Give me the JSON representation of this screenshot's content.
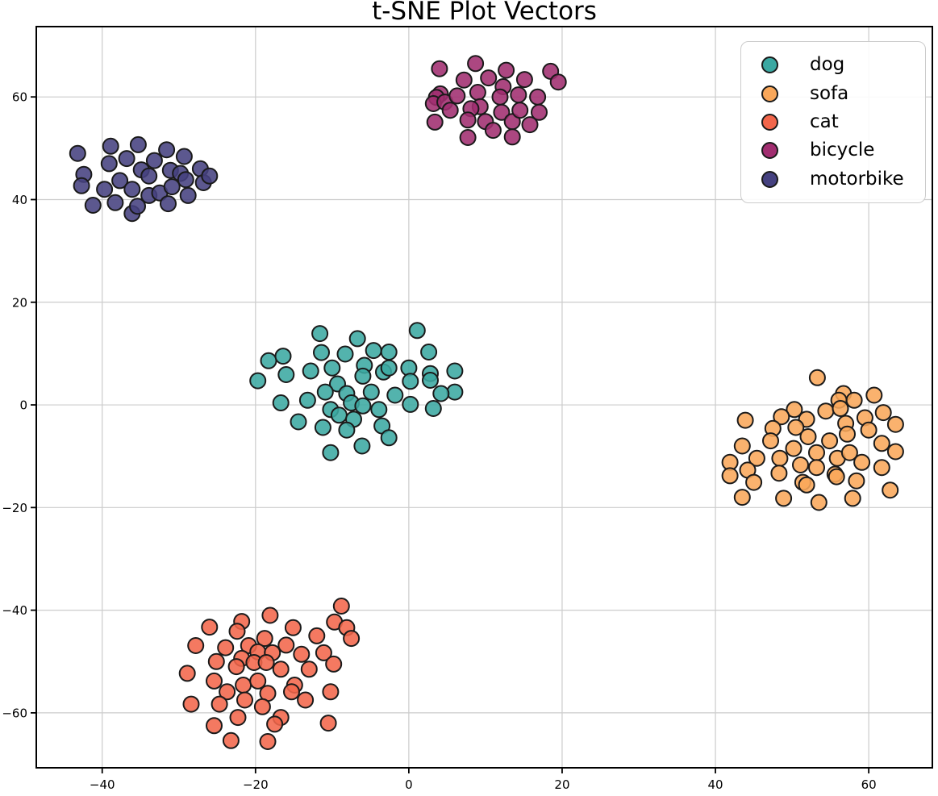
{
  "chart_data": {
    "type": "scatter",
    "title": "t-SNE Plot Vectors",
    "xlabel": "",
    "ylabel": "",
    "xlim": [
      -48.6,
      68.3
    ],
    "ylim": [
      -70.7,
      73.7
    ],
    "grid": true,
    "grid_color": "#cccccc",
    "legend_position": "upper right",
    "marker": {
      "radius_px": 9.5,
      "edge_color": "#1a1a1a",
      "edge_width": 2,
      "fill_opacity": 0.88
    },
    "x_ticks": [
      {
        "value": -40,
        "label": "−40"
      },
      {
        "value": -20,
        "label": "−20"
      },
      {
        "value": 0,
        "label": "0"
      },
      {
        "value": 20,
        "label": "20"
      },
      {
        "value": 40,
        "label": "40"
      },
      {
        "value": 60,
        "label": "60"
      }
    ],
    "y_ticks": [
      {
        "value": -60,
        "label": "−60"
      },
      {
        "value": -40,
        "label": "−40"
      },
      {
        "value": -20,
        "label": "−20"
      },
      {
        "value": 0,
        "label": "0"
      },
      {
        "value": 20,
        "label": "20"
      },
      {
        "value": 40,
        "label": "40"
      },
      {
        "value": 60,
        "label": "60"
      }
    ],
    "series": [
      {
        "name": "dog",
        "color": "#3BA8A2",
        "points": [
          [
            -11.6,
            13.9
          ],
          [
            -6.7,
            12.9
          ],
          [
            1.1,
            14.5
          ],
          [
            -18.3,
            8.6
          ],
          [
            -16.4,
            9.5
          ],
          [
            -11.4,
            10.2
          ],
          [
            -8.3,
            9.9
          ],
          [
            -4.6,
            10.6
          ],
          [
            -2.6,
            10.3
          ],
          [
            2.6,
            10.3
          ],
          [
            6.0,
            6.6
          ],
          [
            -16.0,
            5.9
          ],
          [
            -12.8,
            6.6
          ],
          [
            -10.0,
            7.2
          ],
          [
            -5.8,
            7.7
          ],
          [
            -6.0,
            5.6
          ],
          [
            -3.3,
            6.4
          ],
          [
            -2.6,
            7.2
          ],
          [
            0.0,
            7.2
          ],
          [
            0.2,
            4.6
          ],
          [
            2.8,
            6.1
          ],
          [
            2.8,
            4.8
          ],
          [
            6.0,
            2.5
          ],
          [
            -19.7,
            4.7
          ],
          [
            -9.3,
            4.1
          ],
          [
            -10.9,
            2.5
          ],
          [
            -8.1,
            2.2
          ],
          [
            -4.9,
            2.5
          ],
          [
            -1.8,
            1.9
          ],
          [
            4.2,
            2.2
          ],
          [
            -16.7,
            0.4
          ],
          [
            -13.2,
            0.9
          ],
          [
            -10.2,
            -0.9
          ],
          [
            -9.1,
            -2.0
          ],
          [
            -7.5,
            0.4
          ],
          [
            -6.0,
            -0.2
          ],
          [
            -3.9,
            -0.9
          ],
          [
            0.2,
            0.1
          ],
          [
            3.2,
            -0.7
          ],
          [
            -7.2,
            -2.8
          ],
          [
            -14.4,
            -3.3
          ],
          [
            -11.2,
            -4.4
          ],
          [
            -8.1,
            -4.9
          ],
          [
            -3.5,
            -4.1
          ],
          [
            -2.6,
            -6.4
          ],
          [
            -6.1,
            -8.0
          ],
          [
            -10.2,
            -9.3
          ]
        ]
      },
      {
        "name": "sofa",
        "color": "#F9A75A",
        "points": [
          [
            53.3,
            5.3
          ],
          [
            56.7,
            2.2
          ],
          [
            56.1,
            0.9
          ],
          [
            58.1,
            0.9
          ],
          [
            60.7,
            1.9
          ],
          [
            50.3,
            -0.9
          ],
          [
            54.4,
            -1.2
          ],
          [
            56.3,
            -0.7
          ],
          [
            61.9,
            -1.5
          ],
          [
            43.9,
            -3.0
          ],
          [
            48.6,
            -2.3
          ],
          [
            51.9,
            -2.8
          ],
          [
            50.5,
            -4.4
          ],
          [
            47.5,
            -4.6
          ],
          [
            57.0,
            -3.6
          ],
          [
            59.5,
            -2.5
          ],
          [
            63.5,
            -3.8
          ],
          [
            52.1,
            -6.2
          ],
          [
            57.2,
            -5.7
          ],
          [
            60.0,
            -4.9
          ],
          [
            43.5,
            -8.0
          ],
          [
            47.2,
            -7.0
          ],
          [
            50.2,
            -8.5
          ],
          [
            54.9,
            -7.0
          ],
          [
            61.7,
            -7.5
          ],
          [
            63.5,
            -9.1
          ],
          [
            41.9,
            -11.2
          ],
          [
            45.4,
            -10.4
          ],
          [
            48.4,
            -10.4
          ],
          [
            51.1,
            -11.7
          ],
          [
            53.2,
            -9.3
          ],
          [
            53.2,
            -12.2
          ],
          [
            55.9,
            -10.4
          ],
          [
            57.5,
            -9.3
          ],
          [
            59.1,
            -11.2
          ],
          [
            61.7,
            -12.2
          ],
          [
            41.9,
            -13.8
          ],
          [
            44.2,
            -12.7
          ],
          [
            48.3,
            -13.3
          ],
          [
            51.4,
            -15.1
          ],
          [
            51.9,
            -15.6
          ],
          [
            55.6,
            -13.5
          ],
          [
            55.8,
            -14.0
          ],
          [
            58.4,
            -14.8
          ],
          [
            45.0,
            -15.1
          ],
          [
            43.5,
            -18.0
          ],
          [
            48.9,
            -18.2
          ],
          [
            53.5,
            -19.0
          ],
          [
            57.9,
            -18.2
          ],
          [
            62.8,
            -16.6
          ]
        ]
      },
      {
        "name": "cat",
        "color": "#F2664B",
        "points": [
          [
            -8.8,
            -39.2
          ],
          [
            -18.1,
            -41.0
          ],
          [
            -9.7,
            -42.3
          ],
          [
            -8.1,
            -43.4
          ],
          [
            -21.8,
            -42.2
          ],
          [
            -26.0,
            -43.3
          ],
          [
            -22.4,
            -44.1
          ],
          [
            -7.5,
            -45.5
          ],
          [
            -18.8,
            -45.5
          ],
          [
            -15.1,
            -43.4
          ],
          [
            -27.8,
            -46.9
          ],
          [
            -23.9,
            -47.3
          ],
          [
            -20.9,
            -46.9
          ],
          [
            -19.7,
            -48.1
          ],
          [
            -17.8,
            -48.3
          ],
          [
            -16.0,
            -46.8
          ],
          [
            -12.0,
            -45.0
          ],
          [
            -11.1,
            -48.3
          ],
          [
            -14.0,
            -48.6
          ],
          [
            -21.8,
            -49.4
          ],
          [
            -25.1,
            -50.0
          ],
          [
            -28.9,
            -52.3
          ],
          [
            -22.5,
            -51.0
          ],
          [
            -20.2,
            -50.2
          ],
          [
            -18.6,
            -50.2
          ],
          [
            -16.7,
            -51.5
          ],
          [
            -13.0,
            -51.5
          ],
          [
            -9.8,
            -50.5
          ],
          [
            -25.4,
            -53.8
          ],
          [
            -21.6,
            -54.6
          ],
          [
            -19.7,
            -53.8
          ],
          [
            -14.9,
            -54.6
          ],
          [
            -15.3,
            -55.9
          ],
          [
            -10.2,
            -55.9
          ],
          [
            -23.7,
            -55.9
          ],
          [
            -28.4,
            -58.3
          ],
          [
            -24.7,
            -58.3
          ],
          [
            -21.4,
            -57.5
          ],
          [
            -18.4,
            -56.2
          ],
          [
            -19.1,
            -58.8
          ],
          [
            -13.5,
            -57.5
          ],
          [
            -16.7,
            -60.9
          ],
          [
            -17.5,
            -62.2
          ],
          [
            -22.3,
            -60.9
          ],
          [
            -25.4,
            -62.5
          ],
          [
            -23.2,
            -65.4
          ],
          [
            -18.4,
            -65.6
          ],
          [
            -10.5,
            -62.0
          ]
        ]
      },
      {
        "name": "bicycle",
        "color": "#A12D70",
        "points": [
          [
            4.0,
            65.5
          ],
          [
            8.7,
            66.5
          ],
          [
            7.2,
            63.3
          ],
          [
            10.4,
            63.7
          ],
          [
            12.7,
            65.2
          ],
          [
            12.3,
            62.0
          ],
          [
            15.1,
            63.4
          ],
          [
            18.5,
            65.0
          ],
          [
            19.5,
            62.9
          ],
          [
            4.1,
            60.6
          ],
          [
            3.6,
            59.9
          ],
          [
            3.2,
            58.7
          ],
          [
            4.7,
            59.0
          ],
          [
            6.3,
            60.2
          ],
          [
            5.4,
            57.4
          ],
          [
            9.0,
            60.9
          ],
          [
            9.3,
            58.1
          ],
          [
            8.1,
            57.7
          ],
          [
            7.7,
            55.5
          ],
          [
            10.0,
            55.2
          ],
          [
            11.9,
            60.0
          ],
          [
            12.1,
            57.0
          ],
          [
            13.5,
            55.2
          ],
          [
            14.3,
            60.4
          ],
          [
            14.5,
            57.4
          ],
          [
            15.8,
            54.6
          ],
          [
            16.8,
            60.0
          ],
          [
            17.0,
            57.0
          ],
          [
            3.4,
            55.1
          ],
          [
            7.7,
            52.1
          ],
          [
            11.0,
            53.5
          ],
          [
            13.5,
            52.2
          ]
        ]
      },
      {
        "name": "motorbike",
        "color": "#454180",
        "points": [
          [
            -43.2,
            49.0
          ],
          [
            -38.9,
            50.4
          ],
          [
            -35.3,
            50.7
          ],
          [
            -31.6,
            49.7
          ],
          [
            -29.3,
            48.4
          ],
          [
            -36.8,
            48.0
          ],
          [
            -39.1,
            47.0
          ],
          [
            -33.2,
            47.6
          ],
          [
            -34.9,
            45.8
          ],
          [
            -31.1,
            45.7
          ],
          [
            -29.8,
            45.1
          ],
          [
            -29.1,
            43.9
          ],
          [
            -33.9,
            44.6
          ],
          [
            -42.4,
            44.9
          ],
          [
            -42.7,
            42.7
          ],
          [
            -37.7,
            43.7
          ],
          [
            -36.1,
            42.0
          ],
          [
            -39.7,
            42.0
          ],
          [
            -38.3,
            39.4
          ],
          [
            -41.2,
            38.9
          ],
          [
            -36.1,
            37.3
          ],
          [
            -35.4,
            38.7
          ],
          [
            -33.9,
            40.8
          ],
          [
            -32.5,
            41.3
          ],
          [
            -31.4,
            39.2
          ],
          [
            -30.9,
            42.5
          ],
          [
            -28.8,
            40.8
          ],
          [
            -27.2,
            46.0
          ],
          [
            -26.8,
            43.3
          ],
          [
            -26.0,
            44.6
          ]
        ]
      }
    ]
  }
}
